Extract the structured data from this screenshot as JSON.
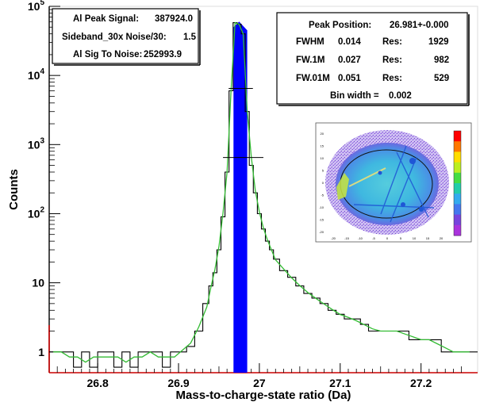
{
  "chart_data": {
    "type": "line",
    "xlabel": "Mass-to-charge-state ratio (Da)",
    "ylabel": "Counts",
    "xlim": [
      26.74,
      27.27
    ],
    "ylim": [
      0.5,
      100000
    ],
    "y_scale": "log",
    "grid": false,
    "x_ticks": [
      "26.8",
      "26.9",
      "27",
      "27.1",
      "27.2"
    ],
    "y_ticks": [
      "1",
      "10",
      "10^2",
      "10^3",
      "10^4",
      "10^5"
    ],
    "peak_window": [
      26.968,
      26.985
    ],
    "fwhm_level": 6500,
    "fw01m_level": 650,
    "colors": {
      "histogram": "#000000",
      "fit": "#33bb33",
      "peak_fill": "#0000ff",
      "axis_left": "#000000",
      "axis_bottom": "#cc0000"
    },
    "series": [
      {
        "x": [
          26.745,
          26.755,
          26.765,
          26.775,
          26.785,
          26.795,
          26.805,
          26.815,
          26.825,
          26.835,
          26.845,
          26.855,
          26.865,
          26.875,
          26.885,
          26.895,
          26.905,
          26.915,
          26.925,
          26.935,
          26.94,
          26.945,
          26.95,
          26.955,
          26.96,
          26.965,
          26.97,
          26.975,
          26.98,
          26.985,
          26.99,
          26.995,
          27.0,
          27.005,
          27.01,
          27.015,
          27.02,
          27.03,
          27.04,
          27.05,
          27.06,
          27.07,
          27.08,
          27.09,
          27.1,
          27.11,
          27.12,
          27.13,
          27.14,
          27.15,
          27.16,
          27.17,
          27.18,
          27.19,
          27.2,
          27.21,
          27.22,
          27.23,
          27.24,
          27.25,
          27.26
        ],
        "values": [
          1,
          1,
          1,
          0.6,
          1,
          0.6,
          1,
          1,
          0.6,
          1,
          0.6,
          1,
          1,
          1,
          0.6,
          1,
          1,
          1.2,
          2,
          5,
          9,
          14,
          30,
          90,
          400,
          6000,
          58000,
          55000,
          40000,
          3000,
          500,
          200,
          100,
          60,
          40,
          30,
          22,
          15,
          12,
          9,
          7,
          6,
          5,
          4,
          3.5,
          3,
          3,
          2.5,
          2,
          2,
          2,
          2,
          2,
          1.5,
          1.5,
          1.5,
          1.5,
          1,
          1,
          1,
          1
        ]
      }
    ]
  },
  "stats_left": [
    {
      "label": "Al Peak Signal:",
      "value": "387924.0"
    },
    {
      "label": "Sideband_30x Noise/30:",
      "value": "1.5"
    },
    {
      "label": "Al Sig To Noise:",
      "value": "252993.9"
    }
  ],
  "stats_right": {
    "peak_label": "Peak Position:",
    "peak_value": "26.981+-0.000",
    "rows": [
      {
        "name": "FWHM",
        "value": "0.014",
        "res_label": "Res:",
        "res": "1929"
      },
      {
        "name": "FW.1M",
        "value": "0.027",
        "res_label": "Res:",
        "res": "982"
      },
      {
        "name": "FW.01M",
        "value": "0.051",
        "res_label": "Res:",
        "res": "529"
      }
    ],
    "bin_label": "Bin width =",
    "bin_value": "0.002"
  },
  "inset": {
    "x_ticks": [
      "-20",
      "-15",
      "-10",
      "-5",
      "0",
      "5",
      "10",
      "15",
      "20"
    ],
    "y_ticks": [
      "20",
      "15",
      "10",
      "5",
      "0",
      "-5",
      "-10",
      "-15",
      "-20"
    ],
    "colorbar_colors": [
      "#ff0000",
      "#ff7700",
      "#ffdd00",
      "#bbee22",
      "#44dd44",
      "#22ccaa",
      "#33aaee",
      "#4477ee",
      "#7744dd",
      "#aa33dd"
    ]
  }
}
